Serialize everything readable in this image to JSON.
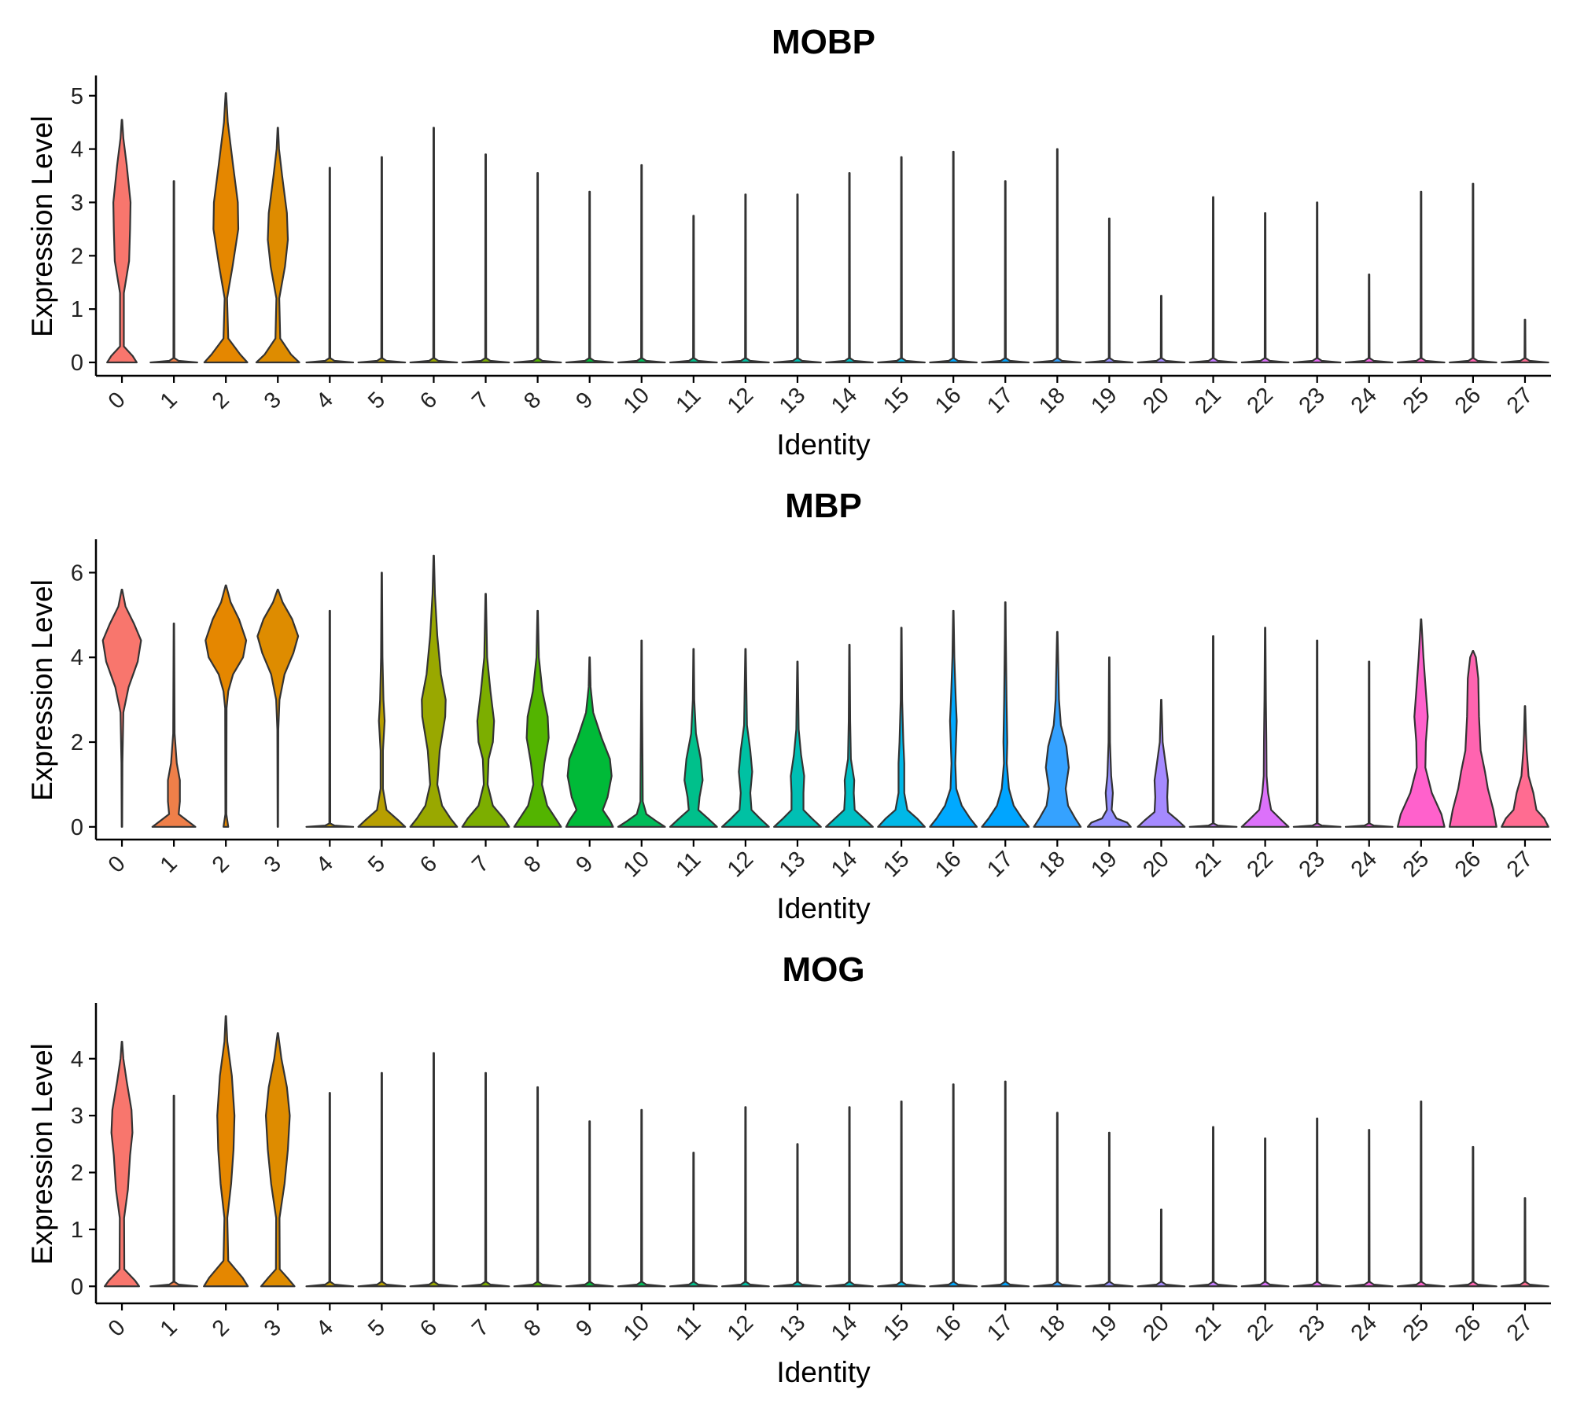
{
  "chart_data": [
    {
      "type": "violin",
      "title": "MOBP",
      "xlabel": "Identity",
      "ylabel": "Expression Level",
      "categories": [
        "0",
        "1",
        "2",
        "3",
        "4",
        "5",
        "6",
        "7",
        "8",
        "9",
        "10",
        "11",
        "12",
        "13",
        "14",
        "15",
        "16",
        "17",
        "18",
        "19",
        "20",
        "21",
        "22",
        "23",
        "24",
        "25",
        "26",
        "27"
      ],
      "yticks": [
        "0",
        "1",
        "2",
        "3",
        "4",
        "5"
      ],
      "ylim": [
        -0.25,
        5.35
      ],
      "max_values": [
        4.55,
        3.4,
        5.05,
        4.4,
        3.65,
        3.85,
        4.4,
        3.9,
        3.55,
        3.2,
        3.7,
        2.75,
        3.15,
        3.15,
        3.55,
        3.85,
        3.95,
        3.4,
        4.0,
        2.7,
        1.25,
        3.1,
        2.8,
        3.0,
        1.65,
        3.2,
        3.35,
        0.8
      ],
      "colors": [
        "#F8766D",
        "#EF7F49",
        "#E58700",
        "#DE8C00",
        "#C49A00",
        "#B79F00",
        "#99A800",
        "#7CAE00",
        "#53B400",
        "#00BA38",
        "#00BC59",
        "#00C08B",
        "#00C1A3",
        "#00BFB4",
        "#00BFC4",
        "#00B8E7",
        "#00A9FF",
        "#00A5FF",
        "#35A2FF",
        "#9590FF",
        "#A58AFF",
        "#C77CFF",
        "#DC71FA",
        "#E76BF3",
        "#F564E3",
        "#FF61CC",
        "#FF64B0",
        "#FF6C91"
      ]
    },
    {
      "type": "violin",
      "title": "MBP",
      "xlabel": "Identity",
      "ylabel": "Expression Level",
      "categories": [
        "0",
        "1",
        "2",
        "3",
        "4",
        "5",
        "6",
        "7",
        "8",
        "9",
        "10",
        "11",
        "12",
        "13",
        "14",
        "15",
        "16",
        "17",
        "18",
        "19",
        "20",
        "21",
        "22",
        "23",
        "24",
        "25",
        "26",
        "27"
      ],
      "yticks": [
        "0",
        "2",
        "4",
        "6"
      ],
      "ylim": [
        -0.3,
        6.75
      ],
      "max_values": [
        5.6,
        4.8,
        5.7,
        5.6,
        5.1,
        6.0,
        6.4,
        5.5,
        5.1,
        4.0,
        4.4,
        4.2,
        4.2,
        3.9,
        4.3,
        4.7,
        5.1,
        5.3,
        4.6,
        4.0,
        3.0,
        4.5,
        4.7,
        4.4,
        3.9,
        4.9,
        4.15,
        2.85
      ],
      "colors": [
        "#F8766D",
        "#EF7F49",
        "#E58700",
        "#DE8C00",
        "#C49A00",
        "#B79F00",
        "#99A800",
        "#7CAE00",
        "#53B400",
        "#00BA38",
        "#00BC59",
        "#00C08B",
        "#00C1A3",
        "#00BFB4",
        "#00BFC4",
        "#00B8E7",
        "#00A9FF",
        "#00A5FF",
        "#35A2FF",
        "#9590FF",
        "#A58AFF",
        "#C77CFF",
        "#DC71FA",
        "#E76BF3",
        "#F564E3",
        "#FF61CC",
        "#FF64B0",
        "#FF6C91"
      ]
    },
    {
      "type": "violin",
      "title": "MOG",
      "xlabel": "Identity",
      "ylabel": "Expression Level",
      "categories": [
        "0",
        "1",
        "2",
        "3",
        "4",
        "5",
        "6",
        "7",
        "8",
        "9",
        "10",
        "11",
        "12",
        "13",
        "14",
        "15",
        "16",
        "17",
        "18",
        "19",
        "20",
        "21",
        "22",
        "23",
        "24",
        "25",
        "26",
        "27"
      ],
      "yticks": [
        "0",
        "1",
        "2",
        "3",
        "4"
      ],
      "ylim": [
        -0.3,
        4.95
      ],
      "max_values": [
        4.3,
        3.35,
        4.75,
        4.45,
        3.4,
        3.75,
        4.1,
        3.75,
        3.5,
        2.9,
        3.1,
        2.35,
        3.15,
        2.5,
        3.15,
        3.25,
        3.55,
        3.6,
        3.05,
        2.7,
        1.35,
        2.8,
        2.6,
        2.95,
        2.75,
        3.25,
        2.45,
        1.55
      ],
      "colors": [
        "#F8766D",
        "#EF7F49",
        "#E58700",
        "#DE8C00",
        "#C49A00",
        "#B79F00",
        "#99A800",
        "#7CAE00",
        "#53B400",
        "#00BA38",
        "#00BC59",
        "#00C08B",
        "#00C1A3",
        "#00BFB4",
        "#00BFC4",
        "#00B8E7",
        "#00A9FF",
        "#00A5FF",
        "#35A2FF",
        "#9590FF",
        "#A58AFF",
        "#C77CFF",
        "#DC71FA",
        "#E76BF3",
        "#F564E3",
        "#FF61CC",
        "#FF64B0",
        "#FF6C91"
      ]
    }
  ]
}
